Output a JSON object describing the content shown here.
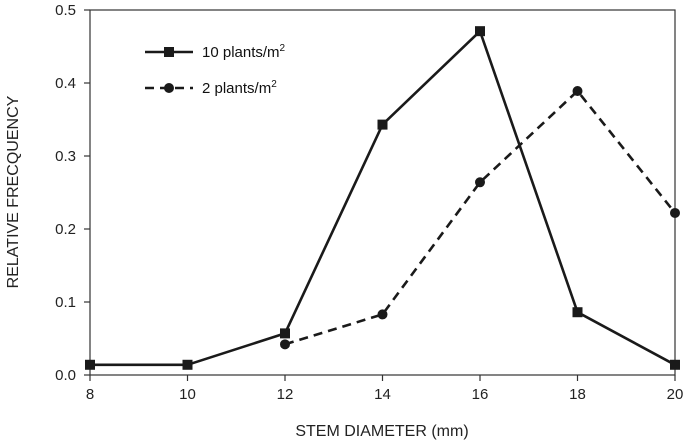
{
  "chart_data": {
    "type": "line",
    "xlabel": "STEM DIAMETER (mm)",
    "ylabel": "RELATIVE FRECQUENCY",
    "xlim": [
      8,
      20
    ],
    "ylim": [
      0,
      0.5
    ],
    "xticks": [
      8,
      10,
      12,
      14,
      16,
      18,
      20
    ],
    "yticks": [
      0.0,
      0.1,
      0.2,
      0.3,
      0.4,
      0.5
    ],
    "ytick_labels": [
      "0.0",
      "0.1",
      "0.2",
      "0.3",
      "0.4",
      "0.5"
    ],
    "grid": false,
    "legend_position": "top-left",
    "series": [
      {
        "name": "10 plants/m",
        "name_superscript": "2",
        "marker": "square",
        "line_style": "solid",
        "color": "#1a1a1a",
        "x": [
          8,
          10,
          12,
          14,
          16,
          18,
          20
        ],
        "y": [
          0.014,
          0.014,
          0.057,
          0.343,
          0.471,
          0.086,
          0.014
        ]
      },
      {
        "name": "2 plants/m",
        "name_superscript": "2",
        "marker": "circle",
        "line_style": "dashed",
        "color": "#1a1a1a",
        "x": [
          12,
          14,
          16,
          18,
          20
        ],
        "y": [
          0.042,
          0.083,
          0.264,
          0.389,
          0.222
        ]
      }
    ]
  }
}
